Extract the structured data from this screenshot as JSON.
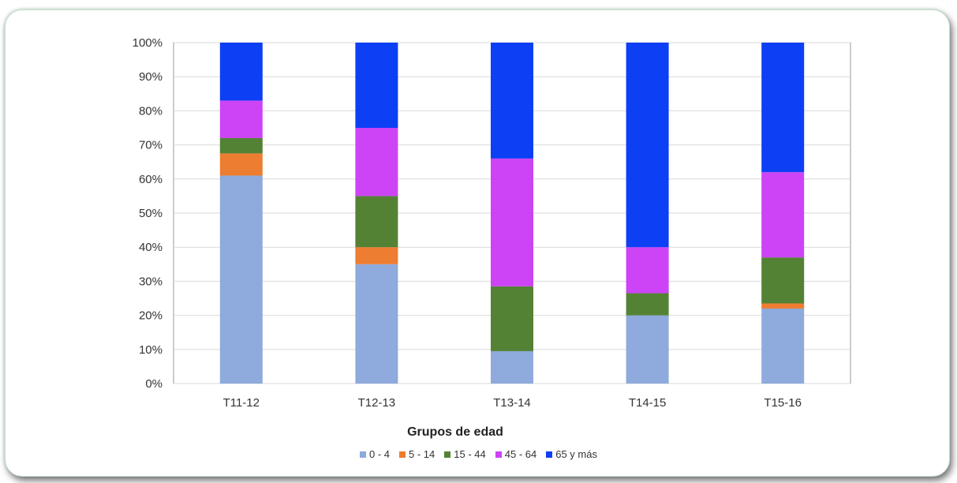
{
  "chart_data": {
    "type": "bar",
    "stacked": true,
    "categories": [
      "T11-12",
      "T12-13",
      "T13-14",
      "T14-15",
      "T15-16"
    ],
    "series": [
      {
        "name": "0 - 4",
        "color": "#8faadc",
        "values": [
          61,
          35,
          9.5,
          20,
          22
        ]
      },
      {
        "name": "5 - 14",
        "color": "#ed7d31",
        "values": [
          6.5,
          5,
          0,
          0,
          1.5
        ]
      },
      {
        "name": "15 - 44",
        "color": "#548235",
        "values": [
          4.5,
          15,
          19,
          6.5,
          13.5
        ]
      },
      {
        "name": "45 - 64",
        "color": "#cc44f5",
        "values": [
          11,
          20,
          37.5,
          13.5,
          25
        ]
      },
      {
        "name": "65 y más",
        "color": "#0d3ff5",
        "values": [
          17,
          25,
          34,
          60,
          38
        ]
      }
    ],
    "y_ticks": [
      "0%",
      "10%",
      "20%",
      "30%",
      "40%",
      "50%",
      "60%",
      "70%",
      "80%",
      "90%",
      "100%"
    ],
    "ylim": [
      0,
      100
    ],
    "xlabel": "Grupos de edad",
    "ylabel": "",
    "grid": true,
    "legend_position": "bottom"
  }
}
